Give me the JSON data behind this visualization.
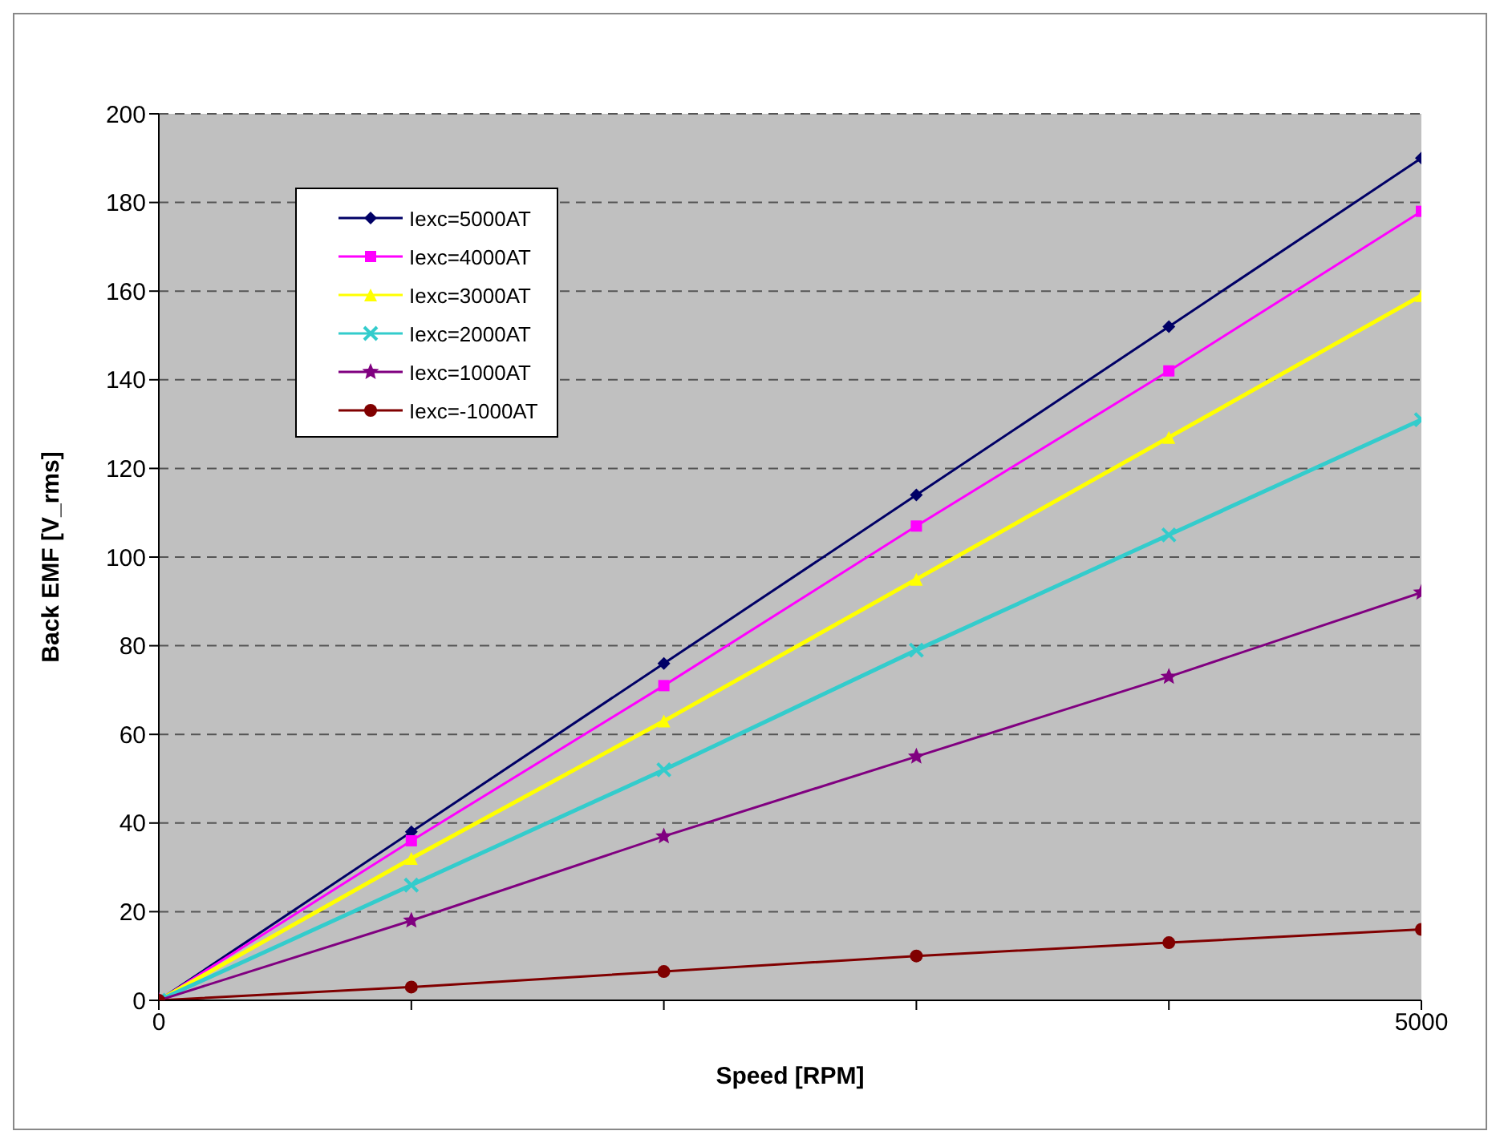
{
  "chart_data": {
    "type": "line",
    "xlabel": "Speed [RPM]",
    "ylabel": "Back EMF [V_rms]",
    "x": [
      0,
      1000,
      2000,
      3000,
      4000,
      5000
    ],
    "xlim": [
      0,
      5000
    ],
    "xticks": [
      0,
      {
        "value": 1000,
        "label": null
      },
      {
        "value": 2000,
        "label": null
      },
      {
        "value": 3000,
        "label": null
      },
      {
        "value": 4000,
        "label": null
      },
      5000
    ],
    "ylim": [
      0,
      200
    ],
    "yticks": [
      0,
      20,
      40,
      60,
      80,
      100,
      120,
      140,
      160,
      180,
      200
    ],
    "grid": "y",
    "legend": "top left",
    "line_style": "solid",
    "series": [
      {
        "name": "Iexc=5000AT",
        "color": "#000066",
        "marker": "diamond",
        "values": [
          0,
          38,
          76,
          114,
          152,
          190
        ]
      },
      {
        "name": "Iexc=4000AT",
        "color": "#ff00ff",
        "marker": "square",
        "values": [
          0,
          36,
          71,
          107,
          142,
          178
        ]
      },
      {
        "name": "Iexc=3000AT",
        "color": "#ffff00",
        "marker": "triangle",
        "values": [
          0,
          32,
          63,
          95,
          127,
          159
        ]
      },
      {
        "name": "Iexc=2000AT",
        "color": "#33cccc",
        "marker": "cross",
        "values": [
          0,
          26,
          52,
          79,
          105,
          131
        ]
      },
      {
        "name": "Iexc=1000AT",
        "color": "#800080",
        "marker": "star",
        "values": [
          0,
          18,
          37,
          55,
          73,
          92
        ]
      },
      {
        "name": "Iexc=-1000AT",
        "color": "#800000",
        "marker": "circle",
        "values": [
          0,
          3,
          6.5,
          10,
          13,
          16
        ]
      }
    ]
  }
}
